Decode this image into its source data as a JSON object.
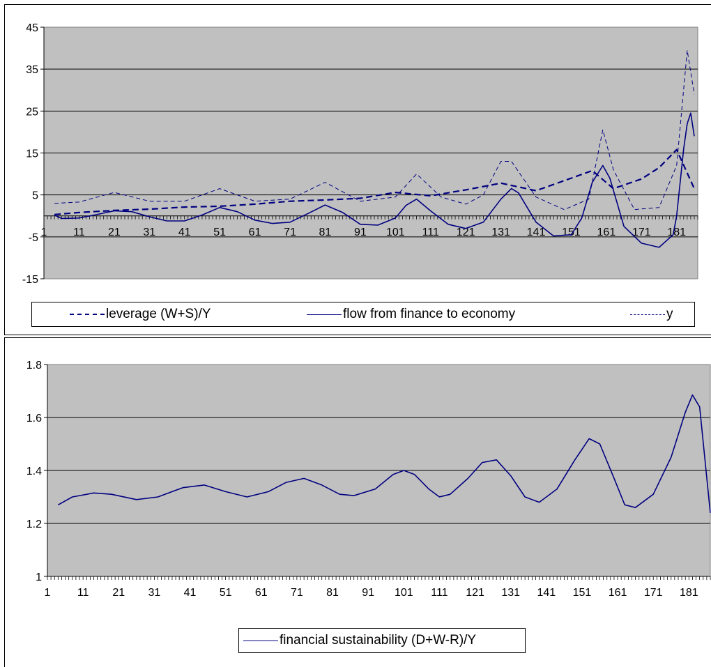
{
  "charts": [
    {
      "legend": [
        "leverage (W+S)/Y",
        "flow from finance to economy",
        "y"
      ]
    },
    {
      "legend": [
        "financial sustainability (D+W-R)/Y"
      ]
    }
  ],
  "chart_data": [
    {
      "type": "line",
      "ylim": [
        -15,
        45
      ],
      "yticks": [
        -15,
        -5,
        5,
        15,
        25,
        35,
        45
      ],
      "xlim": [
        1,
        187
      ],
      "xticks": [
        1,
        11,
        21,
        31,
        41,
        51,
        61,
        71,
        81,
        91,
        101,
        111,
        121,
        131,
        141,
        151,
        161,
        171,
        181
      ],
      "x_axis_at_y": 0,
      "background": "#c0c0c0",
      "grid": true,
      "series": [
        {
          "name": "leverage (W+S)/Y",
          "style": "dashed-thick",
          "color": "#000080",
          "x": [
            4,
            11,
            21,
            31,
            41,
            51,
            61,
            71,
            81,
            91,
            101,
            111,
            121,
            131,
            141,
            151,
            157,
            163,
            171,
            176,
            181,
            186
          ],
          "values": [
            0.3,
            0.8,
            1.3,
            1.6,
            2.1,
            2.3,
            2.8,
            3.5,
            3.8,
            4.2,
            5.6,
            4.8,
            6.2,
            7.8,
            6.0,
            9.0,
            10.8,
            6.5,
            8.8,
            11.5,
            15.8,
            6.5
          ]
        },
        {
          "name": "flow from finance to economy",
          "style": "solid",
          "color": "#000080",
          "x": [
            4,
            6,
            11,
            16,
            21,
            26,
            31,
            36,
            41,
            46,
            51,
            56,
            61,
            66,
            71,
            76,
            81,
            86,
            91,
            96,
            101,
            104,
            107,
            111,
            116,
            121,
            126,
            131,
            134,
            136,
            141,
            146,
            151,
            154,
            157,
            160,
            162,
            166,
            171,
            176,
            180,
            181,
            183,
            184,
            185,
            186
          ],
          "values": [
            0.2,
            -0.6,
            -0.5,
            0.3,
            1.2,
            1.0,
            -0.2,
            -1.2,
            -1.2,
            0.2,
            2.0,
            1.0,
            -1.0,
            -1.8,
            -1.5,
            0.5,
            2.6,
            0.8,
            -2.0,
            -2.2,
            -0.5,
            2.5,
            4.0,
            1.2,
            -2.0,
            -3.0,
            -1.5,
            4.0,
            6.5,
            5.5,
            -1.5,
            -4.8,
            -4.5,
            -0.5,
            8.0,
            12.0,
            9.0,
            -2.5,
            -6.5,
            -7.5,
            -4.5,
            0.0,
            16.0,
            22.0,
            24.5,
            19.0
          ]
        },
        {
          "name": "y",
          "style": "dashed-thin",
          "color": "#000080",
          "x": [
            4,
            11,
            21,
            31,
            41,
            51,
            61,
            71,
            81,
            91,
            101,
            107,
            114,
            121,
            126,
            131,
            134,
            141,
            149,
            156,
            160,
            163,
            169,
            176,
            181,
            184,
            186
          ],
          "values": [
            3.0,
            3.3,
            5.6,
            3.5,
            3.5,
            6.5,
            3.5,
            4.0,
            8.0,
            3.5,
            4.5,
            10.0,
            4.5,
            2.8,
            5.0,
            13.0,
            13.0,
            4.5,
            1.5,
            4.0,
            20.5,
            11.0,
            1.5,
            2.0,
            12.0,
            39.5,
            29.0
          ]
        }
      ]
    },
    {
      "type": "line",
      "ylim": [
        1,
        1.8
      ],
      "yticks": [
        1,
        1.2,
        1.4,
        1.6,
        1.8
      ],
      "xlim": [
        1,
        187
      ],
      "xticks": [
        1,
        11,
        21,
        31,
        41,
        51,
        61,
        71,
        81,
        91,
        101,
        111,
        121,
        131,
        141,
        151,
        161,
        171,
        181
      ],
      "background": "#c0c0c0",
      "grid": true,
      "series": [
        {
          "name": "financial sustainability (D+W-R)/Y",
          "style": "solid",
          "color": "#000080",
          "x": [
            4,
            8,
            14,
            19,
            26,
            32,
            39,
            45,
            51,
            57,
            63,
            68,
            73,
            78,
            83,
            87,
            93,
            98,
            101,
            104,
            108,
            111,
            114,
            119,
            123,
            127,
            131,
            135,
            139,
            144,
            149,
            153,
            156,
            160,
            163,
            166,
            171,
            176,
            180,
            182,
            184,
            187
          ],
          "values": [
            1.27,
            1.3,
            1.315,
            1.31,
            1.29,
            1.3,
            1.335,
            1.345,
            1.32,
            1.3,
            1.32,
            1.355,
            1.37,
            1.345,
            1.31,
            1.305,
            1.33,
            1.385,
            1.4,
            1.385,
            1.33,
            1.3,
            1.31,
            1.37,
            1.43,
            1.44,
            1.38,
            1.3,
            1.28,
            1.33,
            1.44,
            1.52,
            1.5,
            1.37,
            1.27,
            1.26,
            1.31,
            1.45,
            1.62,
            1.685,
            1.64,
            1.24
          ]
        }
      ]
    }
  ]
}
